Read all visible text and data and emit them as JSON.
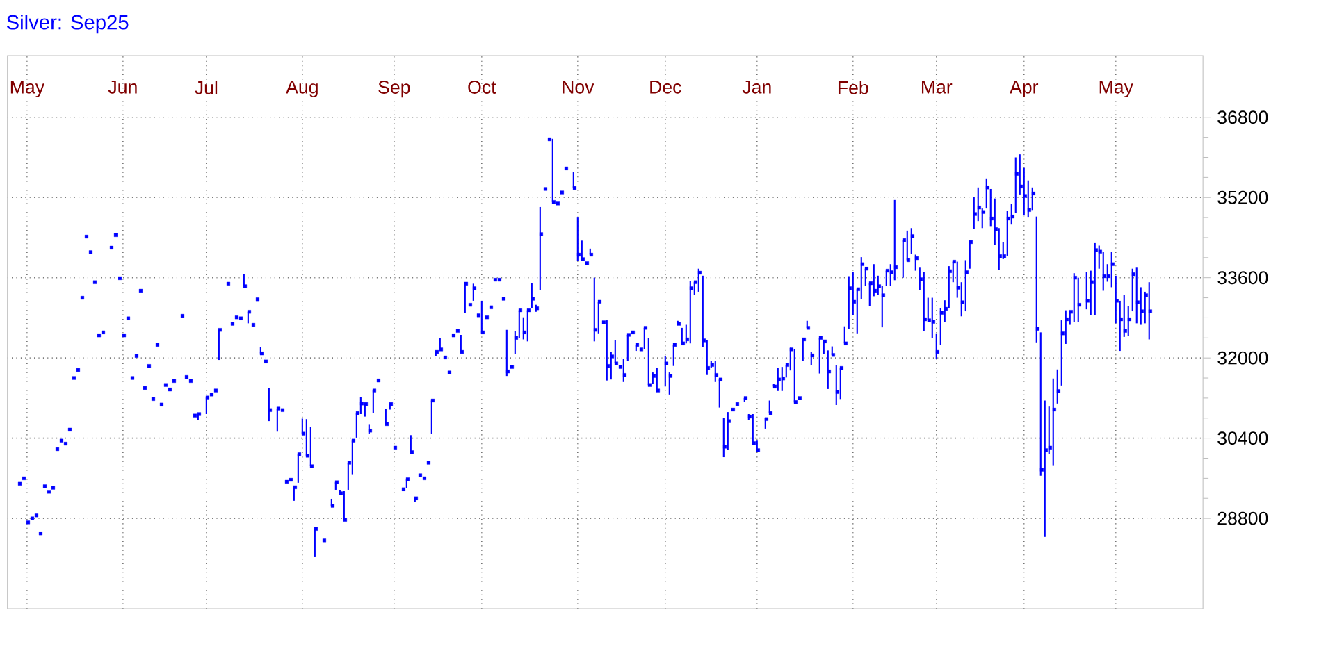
{
  "chart_data": {
    "type": "scatter",
    "title": "Silver: Sep25",
    "color": "#0000ff",
    "grid": true,
    "marker": "square",
    "ylim": [
      27000,
      38030
    ],
    "yticks": [
      28800,
      30400,
      32000,
      33600,
      35200,
      36800
    ],
    "categories": [
      null,
      null,
      null,
      null,
      "May",
      null,
      null,
      null,
      null,
      null,
      null,
      null,
      null,
      null,
      null,
      null,
      null,
      null,
      null,
      null,
      null,
      null,
      null,
      null,
      null,
      null,
      null,
      "Jun",
      null,
      null,
      null,
      null,
      null,
      null,
      null,
      null,
      null,
      null,
      null,
      null,
      null,
      null,
      null,
      null,
      null,
      null,
      null,
      "Jul",
      null,
      null,
      null,
      null,
      null,
      null,
      null,
      null,
      null,
      null,
      null,
      null,
      null,
      null,
      null,
      null,
      null,
      null,
      null,
      null,
      null,
      null,
      "Aug",
      null,
      null,
      null,
      null,
      null,
      null,
      null,
      null,
      null,
      null,
      null,
      null,
      null,
      null,
      null,
      null,
      null,
      null,
      null,
      null,
      null,
      "Sep",
      null,
      null,
      null,
      null,
      null,
      null,
      null,
      null,
      null,
      null,
      null,
      null,
      null,
      null,
      null,
      null,
      null,
      null,
      null,
      null,
      "Oct",
      null,
      null,
      null,
      null,
      null,
      null,
      null,
      null,
      null,
      null,
      null,
      null,
      null,
      null,
      null,
      null,
      null,
      null,
      null,
      null,
      null,
      null,
      "Nov",
      null,
      null,
      null,
      null,
      null,
      null,
      null,
      null,
      null,
      null,
      null,
      null,
      null,
      null,
      null,
      null,
      null,
      null,
      null,
      null,
      "Dec",
      null,
      null,
      null,
      null,
      null,
      null,
      null,
      null,
      null,
      null,
      null,
      null,
      null,
      null,
      null,
      null,
      null,
      null,
      null,
      null,
      null,
      "Jan",
      null,
      null,
      null,
      null,
      null,
      null,
      null,
      null,
      null,
      null,
      null,
      null,
      null,
      null,
      null,
      null,
      null,
      null,
      null,
      null,
      null,
      null,
      "Feb",
      null,
      null,
      null,
      null,
      null,
      null,
      null,
      null,
      null,
      null,
      null,
      null,
      null,
      null,
      null,
      null,
      null,
      null,
      null,
      "Mar",
      null,
      null,
      null,
      null,
      null,
      null,
      null,
      null,
      null,
      null,
      null,
      null,
      null,
      null,
      null,
      null,
      null,
      null,
      null,
      null,
      "Apr",
      null,
      null,
      null,
      null,
      null,
      null,
      null,
      null,
      null,
      null,
      null,
      null,
      null,
      null,
      null,
      null,
      null,
      null,
      null,
      null,
      null,
      "May",
      null,
      null,
      null,
      null,
      null,
      null,
      null,
      null,
      null,
      null,
      null,
      null,
      null,
      null,
      null,
      null,
      null,
      null,
      null,
      null
    ],
    "values": [
      null,
      null,
      29490,
      29600,
      28720,
      28800,
      28860,
      28500,
      29440,
      29330,
      29410,
      30180,
      30350,
      30290,
      30570,
      31600,
      31760,
      33200,
      34420,
      34110,
      33510,
      32450,
      32510,
      null,
      34200,
      34450,
      33590,
      32450,
      32790,
      31600,
      32040,
      33340,
      31400,
      31840,
      31180,
      32260,
      31070,
      31460,
      31370,
      31540,
      null,
      32840,
      31620,
      31540,
      30850,
      30880,
      null,
      31210,
      31270,
      31350,
      32560,
      null,
      33480,
      32680,
      32810,
      32790,
      33430,
      32920,
      32660,
      33170,
      32090,
      31930,
      30960,
      null,
      30990,
      30960,
      29530,
      29570,
      29420,
      30080,
      30490,
      30050,
      29840,
      28590,
      null,
      28360,
      null,
      29050,
      29520,
      29300,
      28770,
      29910,
      30350,
      30900,
      31090,
      31080,
      30550,
      31350,
      31550,
      null,
      30680,
      31080,
      30210,
      null,
      29380,
      29580,
      30120,
      29200,
      29660,
      29600,
      29910,
      31150,
      32120,
      32170,
      32010,
      31710,
      32450,
      32540,
      32120,
      33480,
      33060,
      33390,
      32850,
      32510,
      32810,
      33010,
      33560,
      33560,
      33180,
      31730,
      31820,
      32400,
      32950,
      32510,
      32950,
      33180,
      32990,
      34470,
      35370,
      36360,
      35110,
      35080,
      35300,
      35780,
      null,
      35390,
      34060,
      33970,
      33890,
      34060,
      32560,
      33120,
      32710,
      31840,
      32030,
      31890,
      31820,
      31660,
      32460,
      32510,
      32260,
      32170,
      32600,
      31460,
      31640,
      31350,
      null,
      31890,
      31640,
      32260,
      32680,
      32290,
      32370,
      33390,
      33510,
      33700,
      32350,
      31800,
      31860,
      31660,
      31570,
      30230,
      30740,
      30970,
      31080,
      null,
      31200,
      30830,
      30300,
      30160,
      null,
      30780,
      30900,
      31430,
      31570,
      31590,
      31860,
      32170,
      31120,
      31200,
      32370,
      32600,
      32050,
      null,
      32400,
      32330,
      31730,
      32060,
      31320,
      31800,
      32290,
      33390,
      33120,
      33370,
      33870,
      33780,
      33490,
      33340,
      33430,
      33250,
      33740,
      33710,
      33810,
      null,
      34350,
      33950,
      34430,
      33990,
      33570,
      32770,
      32750,
      32720,
      32120,
      32900,
      32980,
      33730,
      33920,
      33400,
      33110,
      33710,
      34310,
      34870,
      35000,
      34910,
      35400,
      34780,
      34570,
      34030,
      34030,
      34780,
      34820,
      35670,
      35420,
      35230,
      34950,
      35280,
      32580,
      29770,
      30160,
      30210,
      30970,
      31340,
      32490,
      32770,
      32920,
      33600,
      33060,
      null,
      33140,
      33510,
      34150,
      34120,
      33630,
      33630,
      33870,
      33140,
      32770,
      32540,
      32770,
      33670,
      33110,
      32930,
      33250,
      32930,
      null,
      null,
      null,
      null,
      null,
      null,
      null,
      null,
      null,
      null,
      null,
      null
    ],
    "errors": [
      null,
      null,
      null,
      null,
      null,
      null,
      null,
      null,
      null,
      null,
      null,
      null,
      null,
      null,
      null,
      null,
      null,
      null,
      null,
      null,
      null,
      null,
      null,
      null,
      null,
      null,
      null,
      null,
      null,
      null,
      null,
      null,
      null,
      null,
      null,
      null,
      null,
      null,
      null,
      null,
      null,
      null,
      null,
      null,
      null,
      [
        30760,
        30880
      ],
      null,
      [
        30880,
        31210
      ],
      null,
      null,
      [
        31960,
        32560
      ],
      null,
      null,
      null,
      null,
      null,
      [
        33430,
        33670
      ],
      [
        32690,
        32920
      ],
      null,
      null,
      [
        32090,
        32210
      ],
      null,
      [
        30740,
        31400
      ],
      null,
      [
        30530,
        30990
      ],
      null,
      null,
      null,
      [
        29150,
        29420
      ],
      [
        29510,
        30080
      ],
      [
        30490,
        30790
      ],
      [
        30050,
        30780
      ],
      [
        29840,
        30630
      ],
      [
        28040,
        28590
      ],
      null,
      null,
      null,
      [
        29050,
        29190
      ],
      [
        29370,
        29520
      ],
      [
        29300,
        29370
      ],
      [
        28770,
        29350
      ],
      [
        29370,
        29910
      ],
      [
        29680,
        30350
      ],
      [
        30410,
        30900
      ],
      [
        30880,
        31220
      ],
      [
        30830,
        31080
      ],
      [
        30490,
        30680
      ],
      [
        30900,
        31350
      ],
      null,
      null,
      [
        30680,
        30990
      ],
      [
        30970,
        31080
      ],
      null,
      null,
      null,
      [
        29400,
        29580
      ],
      [
        30120,
        30460
      ],
      [
        29120,
        29200
      ],
      null,
      null,
      null,
      [
        30480,
        31150
      ],
      [
        32030,
        32120
      ],
      [
        32170,
        32400
      ],
      null,
      null,
      null,
      null,
      [
        32120,
        32460
      ],
      [
        32890,
        33480
      ],
      null,
      [
        33140,
        33480
      ],
      null,
      [
        32490,
        33140
      ],
      null,
      null,
      null,
      null,
      null,
      [
        31640,
        32560
      ],
      null,
      [
        32080,
        32540
      ],
      [
        32400,
        32950
      ],
      [
        32370,
        32810
      ],
      [
        32330,
        32950
      ],
      [
        33000,
        33490
      ],
      [
        32920,
        33060
      ],
      [
        33360,
        35010
      ],
      null,
      null,
      [
        35110,
        36370
      ],
      null,
      null,
      null,
      null,
      [
        35390,
        35710
      ],
      [
        33940,
        34800
      ],
      [
        33970,
        34340
      ],
      null,
      [
        34060,
        34180
      ],
      [
        32330,
        33600
      ],
      [
        32490,
        33120
      ],
      null,
      [
        31550,
        32750
      ],
      [
        31570,
        32120
      ],
      [
        31890,
        32350
      ],
      null,
      [
        31520,
        31980
      ],
      [
        31940,
        32460
      ],
      null,
      [
        32140,
        32260
      ],
      null,
      [
        32170,
        32600
      ],
      [
        31460,
        32400
      ],
      [
        31480,
        31710
      ],
      [
        31350,
        31800
      ],
      null,
      [
        31430,
        32030
      ],
      [
        31270,
        31710
      ],
      [
        31840,
        32260
      ],
      [
        32680,
        32740
      ],
      [
        32290,
        32600
      ],
      [
        32290,
        32660
      ],
      [
        32290,
        33530
      ],
      [
        33250,
        33510
      ],
      [
        33320,
        33780
      ],
      [
        32210,
        33640
      ],
      [
        31660,
        32350
      ],
      [
        31800,
        31940
      ],
      [
        31520,
        31940
      ],
      [
        31010,
        31570
      ],
      [
        30020,
        30800
      ],
      [
        30160,
        30920
      ],
      null,
      null,
      null,
      [
        31120,
        31200
      ],
      [
        30760,
        30880
      ],
      [
        30280,
        30880
      ],
      [
        30160,
        30350
      ],
      null,
      [
        30590,
        30800
      ],
      [
        30900,
        31150
      ],
      [
        31430,
        31480
      ],
      [
        31340,
        31800
      ],
      [
        31340,
        31820
      ],
      [
        31610,
        31860
      ],
      [
        31750,
        32200
      ],
      [
        31110,
        32170
      ],
      null,
      [
        31940,
        32370
      ],
      [
        32600,
        32740
      ],
      [
        31860,
        32120
      ],
      null,
      [
        31690,
        32400
      ],
      [
        32080,
        32330
      ],
      [
        31380,
        32150
      ],
      [
        32060,
        32230
      ],
      [
        31060,
        31860
      ],
      [
        31180,
        31800
      ],
      [
        32290,
        32630
      ],
      [
        32580,
        33630
      ],
      [
        32860,
        33710
      ],
      [
        32490,
        33370
      ],
      [
        33180,
        34010
      ],
      [
        33430,
        33780
      ],
      [
        33040,
        33490
      ],
      [
        33230,
        33870
      ],
      [
        33260,
        33640
      ],
      [
        32610,
        33440
      ],
      [
        33440,
        33740
      ],
      [
        33440,
        33870
      ],
      [
        33550,
        35150
      ],
      null,
      [
        33600,
        34350
      ],
      [
        33950,
        34540
      ],
      [
        34080,
        34590
      ],
      [
        33740,
        34060
      ],
      [
        33360,
        33800
      ],
      [
        32530,
        33710
      ],
      [
        32750,
        33200
      ],
      [
        32400,
        33200
      ],
      [
        31980,
        32490
      ],
      [
        32260,
        33000
      ],
      [
        32720,
        33150
      ],
      [
        32990,
        33830
      ],
      [
        33510,
        33920
      ],
      [
        33200,
        33920
      ],
      [
        32830,
        33510
      ],
      [
        32930,
        33950
      ],
      [
        33780,
        34310
      ],
      [
        34570,
        35210
      ],
      [
        34730,
        35400
      ],
      [
        34590,
        34980
      ],
      [
        34980,
        35580
      ],
      [
        34630,
        35370
      ],
      [
        34260,
        35180
      ],
      [
        33750,
        34590
      ],
      [
        33970,
        34310
      ],
      [
        34040,
        34940
      ],
      [
        34660,
        35070
      ],
      [
        34890,
        36000
      ],
      [
        35260,
        36060
      ],
      [
        34840,
        35790
      ],
      [
        34800,
        35540
      ],
      [
        34950,
        35400
      ],
      [
        32310,
        34820
      ],
      [
        29650,
        32510
      ],
      [
        28430,
        31150
      ],
      [
        30090,
        31030
      ],
      [
        29860,
        31590
      ],
      [
        31090,
        31770
      ],
      [
        31450,
        32750
      ],
      [
        32280,
        32950
      ],
      [
        32660,
        32920
      ],
      [
        32720,
        33690
      ],
      [
        32720,
        33600
      ],
      null,
      [
        32970,
        33720
      ],
      [
        32860,
        33740
      ],
      [
        32860,
        34290
      ],
      [
        33780,
        34240
      ],
      [
        33340,
        34120
      ],
      [
        33520,
        33870
      ],
      [
        33410,
        34120
      ],
      [
        32690,
        33640
      ],
      [
        32140,
        33140
      ],
      [
        32420,
        33260
      ],
      [
        32440,
        33040
      ],
      [
        32930,
        33780
      ],
      [
        32690,
        33800
      ],
      [
        32660,
        33410
      ],
      [
        32690,
        33320
      ],
      [
        32370,
        33510
      ],
      null,
      null,
      null,
      null,
      null,
      null,
      null,
      null,
      null,
      null,
      null,
      null
    ]
  }
}
